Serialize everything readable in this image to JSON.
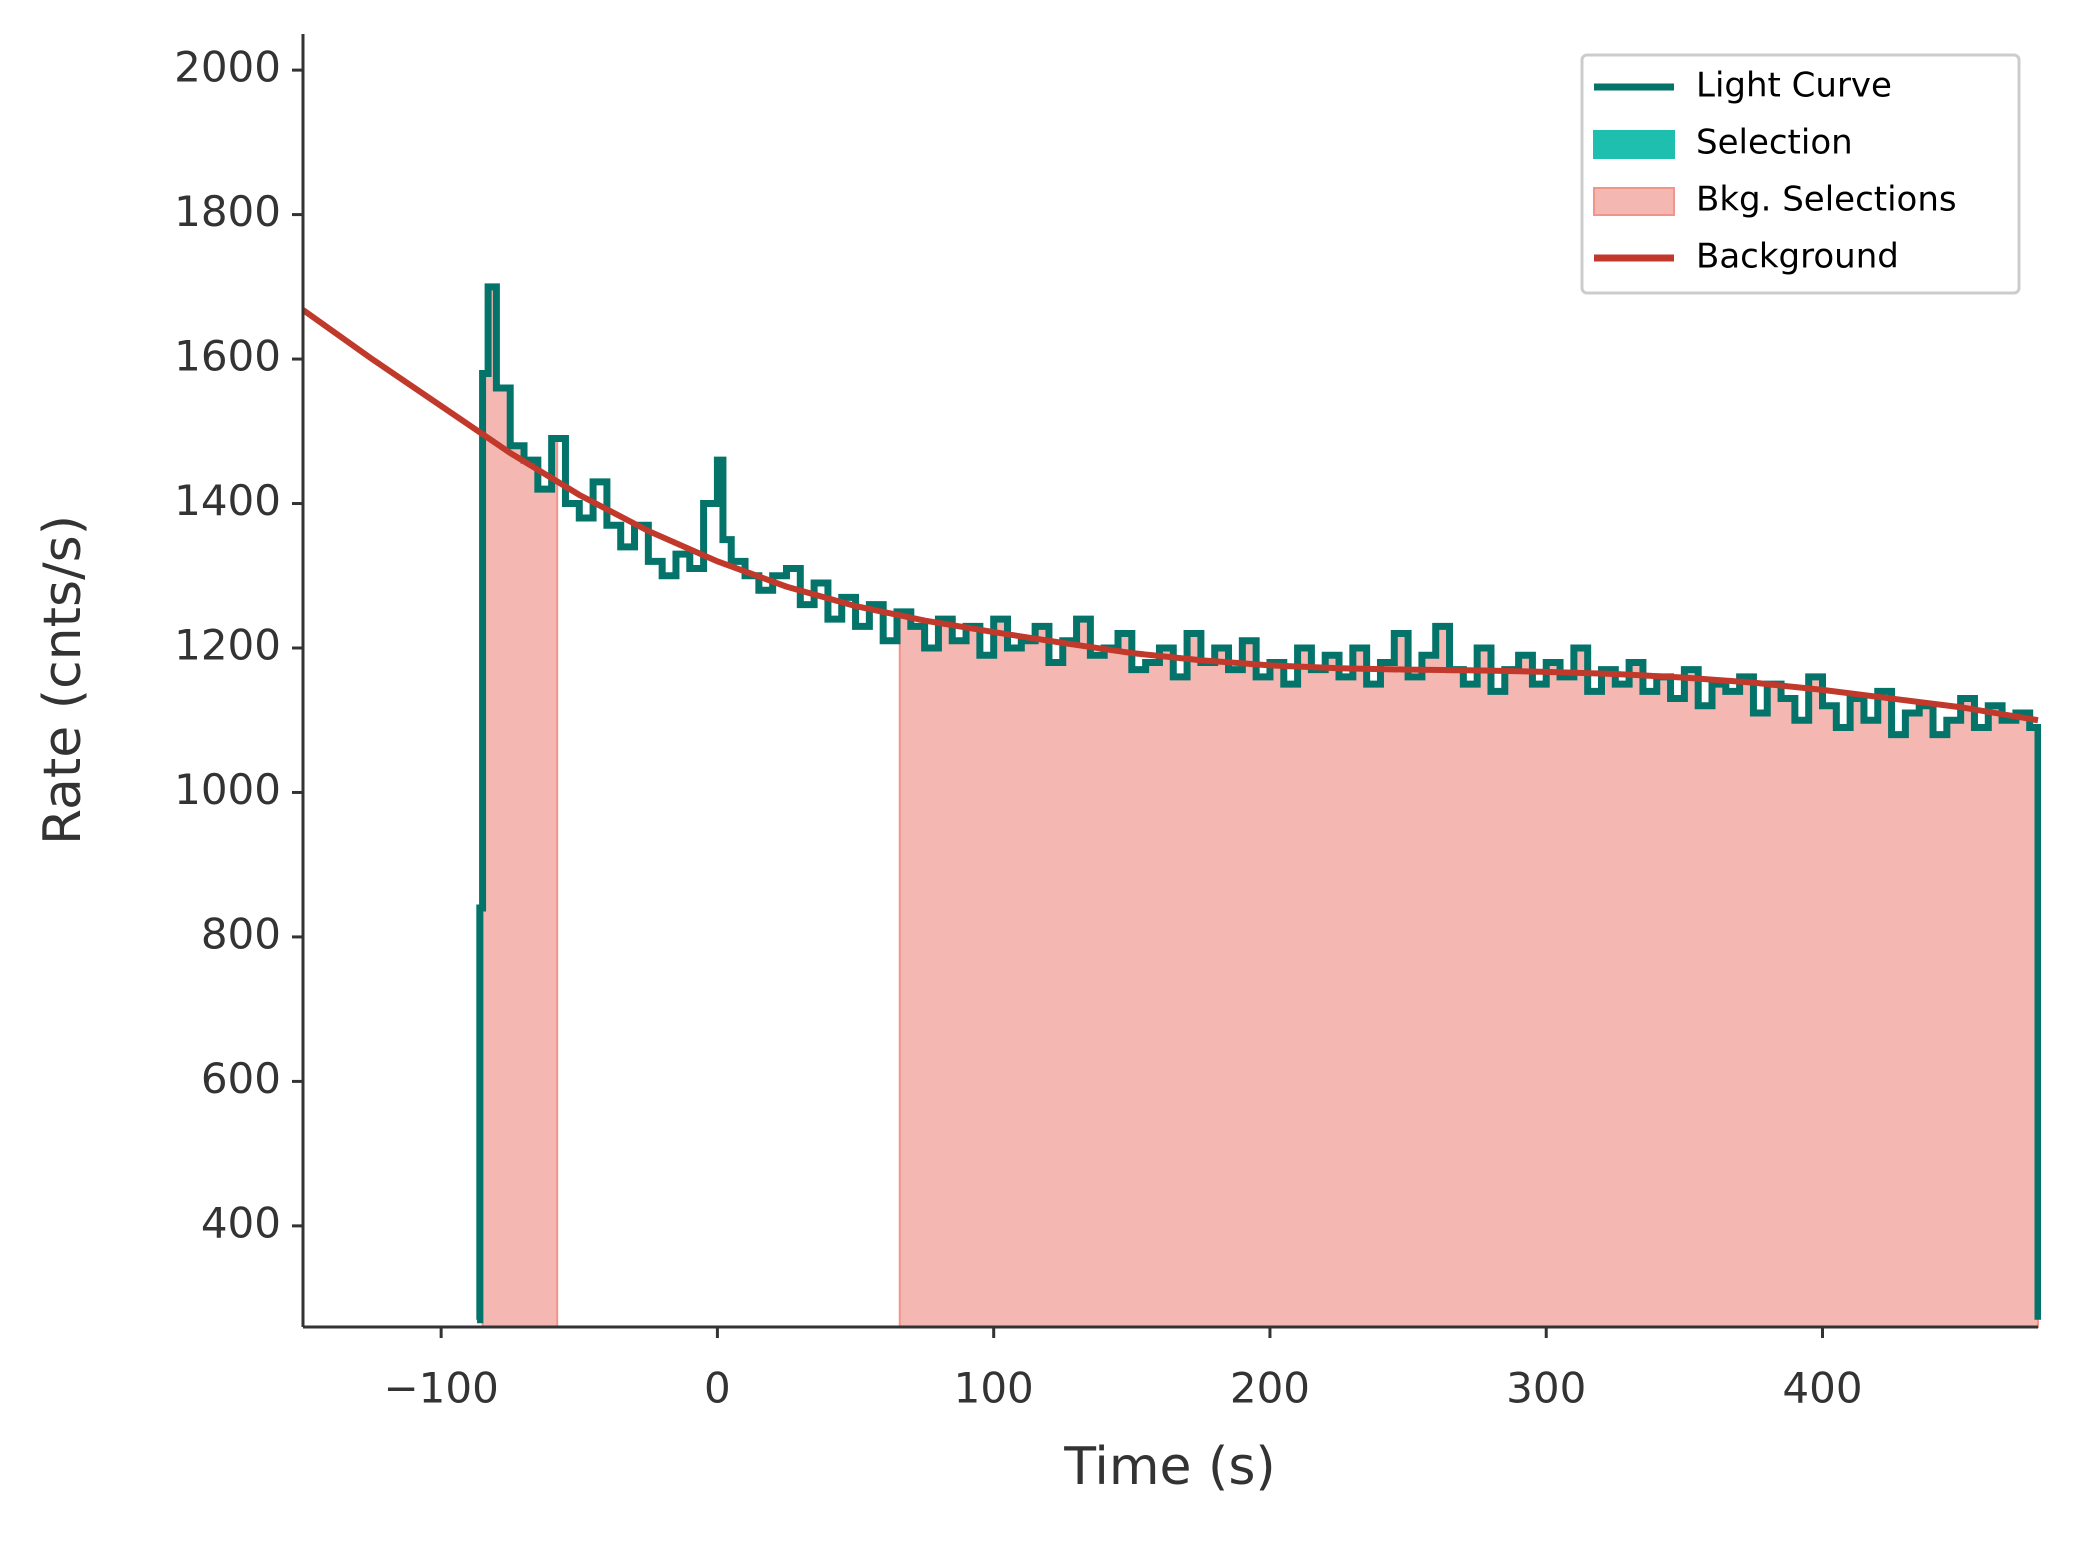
{
  "chart_data": {
    "type": "step_line",
    "xlabel": "Time (s)",
    "ylabel": "Rate (cnts/s)",
    "xlim": [
      -150,
      478
    ],
    "ylim": [
      260,
      2050
    ],
    "xticks": [
      {
        "value": -100,
        "label": "−100"
      },
      0,
      100,
      200,
      300,
      400
    ],
    "yticks": [
      400,
      600,
      800,
      1000,
      1200,
      1400,
      1600,
      1800,
      2000
    ],
    "legend": "upper right",
    "light_curve": {
      "name": "Light Curve",
      "color": "#04736a",
      "x": [
        -87,
        -86,
        -85,
        -83,
        -80,
        -75,
        -70,
        -65,
        -60,
        -55,
        -50,
        -45,
        -40,
        -35,
        -30,
        -25,
        -20,
        -15,
        -10,
        -5,
        0,
        2,
        5,
        10,
        15,
        20,
        25,
        30,
        35,
        40,
        45,
        50,
        55,
        60,
        65,
        70,
        75,
        80,
        85,
        90,
        95,
        100,
        105,
        110,
        115,
        120,
        125,
        130,
        135,
        140,
        145,
        150,
        155,
        160,
        165,
        170,
        175,
        180,
        185,
        190,
        195,
        200,
        205,
        210,
        215,
        220,
        225,
        230,
        235,
        240,
        245,
        250,
        255,
        260,
        265,
        270,
        275,
        280,
        285,
        290,
        295,
        300,
        305,
        310,
        315,
        320,
        325,
        330,
        335,
        340,
        345,
        350,
        355,
        360,
        365,
        370,
        375,
        380,
        385,
        390,
        395,
        400,
        405,
        410,
        415,
        420,
        425,
        430,
        435,
        440,
        445,
        450,
        455,
        460,
        465,
        470,
        475,
        478
      ],
      "values": [
        270,
        840,
        1580,
        1700,
        1560,
        1480,
        1460,
        1420,
        1490,
        1400,
        1380,
        1430,
        1370,
        1340,
        1370,
        1320,
        1300,
        1330,
        1310,
        1400,
        1460,
        1350,
        1320,
        1300,
        1280,
        1300,
        1310,
        1260,
        1290,
        1240,
        1270,
        1230,
        1260,
        1210,
        1250,
        1230,
        1200,
        1240,
        1210,
        1230,
        1190,
        1240,
        1200,
        1210,
        1230,
        1180,
        1210,
        1240,
        1190,
        1200,
        1220,
        1170,
        1180,
        1200,
        1160,
        1220,
        1180,
        1200,
        1170,
        1210,
        1160,
        1180,
        1150,
        1200,
        1170,
        1190,
        1160,
        1200,
        1150,
        1180,
        1220,
        1160,
        1190,
        1230,
        1170,
        1150,
        1200,
        1140,
        1170,
        1190,
        1150,
        1180,
        1160,
        1200,
        1140,
        1170,
        1150,
        1180,
        1140,
        1160,
        1130,
        1170,
        1120,
        1150,
        1140,
        1160,
        1110,
        1150,
        1130,
        1100,
        1160,
        1120,
        1090,
        1130,
        1100,
        1140,
        1080,
        1110,
        1120,
        1080,
        1100,
        1130,
        1090,
        1120,
        1100,
        1110,
        1090,
        270
      ]
    },
    "selection": {
      "name": "Selection",
      "color": "#1fbfb0"
    },
    "bkg_selections": {
      "name": "Bkg. Selections",
      "color": "#f5b7b1",
      "edge": "#f1948a",
      "ranges": [
        [
          -85,
          -58
        ],
        [
          66,
          478
        ]
      ]
    },
    "background": {
      "name": "Background",
      "color": "#c0392b",
      "x": [
        -150,
        -125,
        -100,
        -75,
        -50,
        -25,
        0,
        25,
        50,
        75,
        100,
        125,
        150,
        175,
        200,
        225,
        250,
        275,
        300,
        325,
        350,
        375,
        400,
        425,
        450,
        478
      ],
      "values": [
        1668,
        1600,
        1535,
        1470,
        1412,
        1362,
        1320,
        1285,
        1258,
        1238,
        1222,
        1207,
        1193,
        1183,
        1176,
        1172,
        1170,
        1169,
        1167,
        1164,
        1159,
        1152,
        1142,
        1130,
        1118,
        1100
      ]
    }
  }
}
